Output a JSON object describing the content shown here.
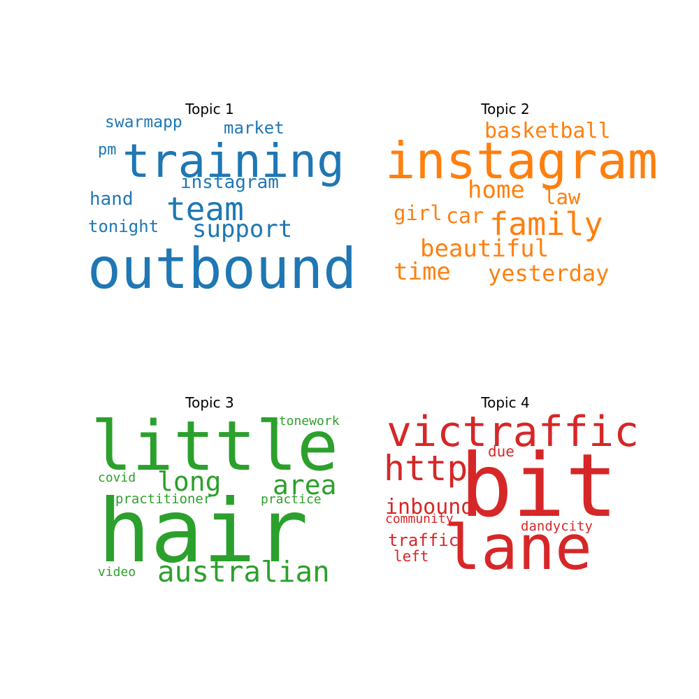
{
  "chart_data": [
    {
      "type": "wordcloud",
      "title": "Topic 1",
      "color": "#1f77b4",
      "words": [
        {
          "text": "outbound",
          "weight": 1.0
        },
        {
          "text": "training",
          "weight": 0.82
        },
        {
          "text": "team",
          "weight": 0.58
        },
        {
          "text": "support",
          "weight": 0.42
        },
        {
          "text": "instagram",
          "weight": 0.33
        },
        {
          "text": "market",
          "weight": 0.3
        },
        {
          "text": "swarmapp",
          "weight": 0.29
        },
        {
          "text": "hand",
          "weight": 0.33
        },
        {
          "text": "tonight",
          "weight": 0.3
        },
        {
          "text": "pm",
          "weight": 0.27
        }
      ]
    },
    {
      "type": "wordcloud",
      "title": "Topic 2",
      "color": "#ff7f0e",
      "words": [
        {
          "text": "instagram",
          "weight": 1.0
        },
        {
          "text": "family",
          "weight": 0.62
        },
        {
          "text": "home",
          "weight": 0.47
        },
        {
          "text": "beautiful",
          "weight": 0.47
        },
        {
          "text": "time",
          "weight": 0.47
        },
        {
          "text": "yesterday",
          "weight": 0.45
        },
        {
          "text": "basketball",
          "weight": 0.42
        },
        {
          "text": "car",
          "weight": 0.42
        },
        {
          "text": "law",
          "weight": 0.4
        },
        {
          "text": "girl",
          "weight": 0.4
        }
      ]
    },
    {
      "type": "wordcloud",
      "title": "Topic 3",
      "color": "#2ca02c",
      "words": [
        {
          "text": "hair",
          "weight": 1.0
        },
        {
          "text": "little",
          "weight": 0.78
        },
        {
          "text": "australian",
          "weight": 0.33
        },
        {
          "text": "long",
          "weight": 0.3
        },
        {
          "text": "area",
          "weight": 0.3
        },
        {
          "text": "practitioner",
          "weight": 0.15
        },
        {
          "text": "practice",
          "weight": 0.14
        },
        {
          "text": "stonework",
          "weight": 0.14
        },
        {
          "text": "covid",
          "weight": 0.14
        },
        {
          "text": "video",
          "weight": 0.14
        }
      ]
    },
    {
      "type": "wordcloud",
      "title": "Topic 4",
      "color": "#d62728",
      "words": [
        {
          "text": "bit",
          "weight": 1.0
        },
        {
          "text": "lane",
          "weight": 0.7
        },
        {
          "text": "victraffic",
          "weight": 0.48
        },
        {
          "text": "http",
          "weight": 0.4
        },
        {
          "text": "inbound",
          "weight": 0.24
        },
        {
          "text": "traffic",
          "weight": 0.19
        },
        {
          "text": "left",
          "weight": 0.17
        },
        {
          "text": "due",
          "weight": 0.17
        },
        {
          "text": "dandycity",
          "weight": 0.15
        },
        {
          "text": "community",
          "weight": 0.14
        }
      ]
    }
  ]
}
